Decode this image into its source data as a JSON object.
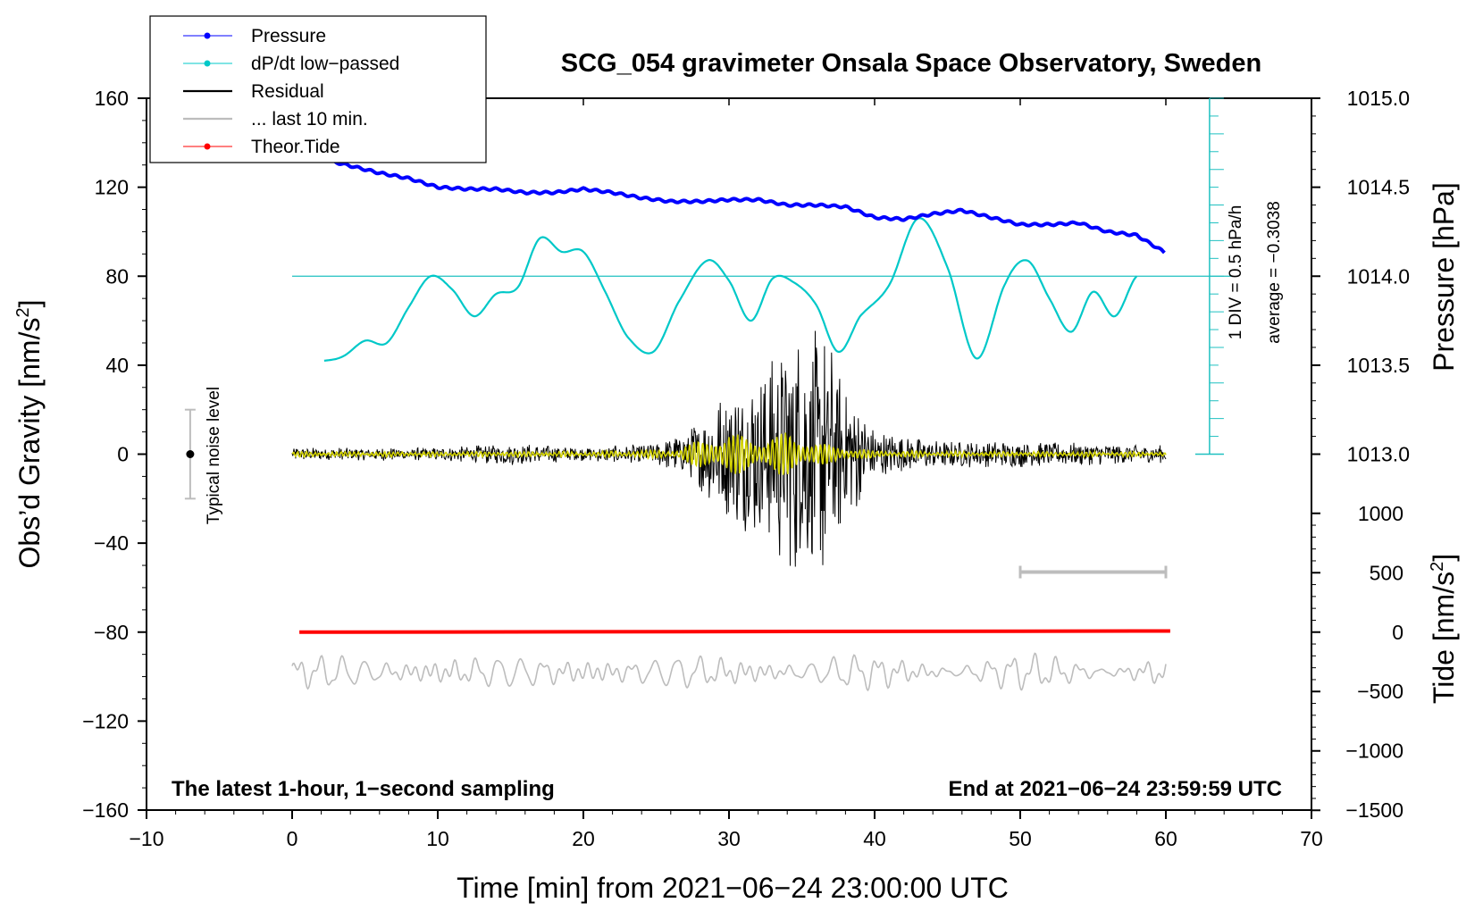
{
  "chart_data": {
    "type": "line",
    "title": "SCG_054 gravimeter Onsala Space Observatory, Sweden",
    "xlabel": "Time [min] from 2021−06−24 23:00:00 UTC",
    "ylabel_left_main": "Obs’d Gravity [nm/s",
    "ylabel_left_sup": "2",
    "ylabel_left_end": "]",
    "ylabel_right_pressure": "Pressure [hPa]",
    "ylabel_right_tide_main": "Tide [nm/s",
    "ylabel_right_tide_sup": "2",
    "ylabel_right_tide_end": "]",
    "xlim": [
      -10,
      70
    ],
    "ylim": [
      -160,
      160
    ],
    "x_ticks": [
      -10,
      0,
      10,
      20,
      30,
      40,
      50,
      60,
      70
    ],
    "x_tick_labels": [
      "−10",
      "0",
      "10",
      "20",
      "30",
      "40",
      "50",
      "60",
      "70"
    ],
    "y_ticks": [
      -160,
      -120,
      -80,
      -40,
      0,
      40,
      80,
      120,
      160
    ],
    "y_tick_labels": [
      "−160",
      "−120",
      "−80",
      "−40",
      "0",
      "40",
      "80",
      "120",
      "160"
    ],
    "pressure_ticks": [
      1013.0,
      1013.5,
      1014.0,
      1014.5,
      1015.0
    ],
    "pressure_tick_labels": [
      "1013.0",
      "1013.5",
      "1014.0",
      "1014.5",
      "1015.0"
    ],
    "pressure_axis_ref": {
      "p1": 1014.0,
      "g1": 80,
      "g_per_hpa": 80
    },
    "tide_ticks": [
      -1500,
      -1000,
      -500,
      0,
      500,
      1000
    ],
    "tide_tick_labels": [
      "−1500",
      "−1000",
      "−500",
      "0",
      "500",
      "1000"
    ],
    "tide_axis_ref": {
      "t0": 0,
      "g0": -80,
      "g_per_unit": 0.0534
    },
    "legend": [
      {
        "label": "Pressure",
        "color": "#0000ff",
        "marker": true
      },
      {
        "label": "dP/dt low−passed",
        "color": "#00c8c8",
        "marker": true
      },
      {
        "label": "Residual",
        "color": "#000000",
        "marker": false
      },
      {
        "label": "... last 10 min.",
        "color": "#bdbdbd",
        "marker": false
      },
      {
        "label": "Theor.Tide",
        "color": "#ff0000",
        "marker": true
      }
    ],
    "legend_location": "top-left",
    "note_left": "The latest 1-hour, 1−second sampling",
    "note_right": "End at 2021−06−24 23:59:59 UTC",
    "noise_label": "Typical noise level",
    "noise_level": {
      "x": -7,
      "center": 0,
      "halfwidth": 20
    },
    "dpdt_scale_label": "1 DIV = 0.5 hPa/h",
    "dpdt_average_label": "average = −0.3038",
    "dpdt_ref_line_y": 80,
    "dpdt_scale_bar": {
      "x": 63,
      "y_from": 0,
      "y_to": 160,
      "div_count": 10
    },
    "period_bar": {
      "x_from": 50,
      "x_to": 60,
      "y": -53
    },
    "series": [
      {
        "name": "Pressure",
        "color": "#0000ff",
        "x": [
          0,
          2,
          4,
          6,
          8,
          10,
          12,
          14,
          16,
          18,
          20,
          22,
          24,
          26,
          28,
          30,
          32,
          34,
          36,
          38,
          40,
          42,
          44,
          46,
          48,
          50,
          52,
          54,
          56,
          58,
          60
        ],
        "y": [
          1014.7,
          1014.66,
          1014.62,
          1014.58,
          1014.55,
          1014.5,
          1014.49,
          1014.49,
          1014.47,
          1014.47,
          1014.49,
          1014.47,
          1014.44,
          1014.42,
          1014.42,
          1014.43,
          1014.43,
          1014.4,
          1014.4,
          1014.39,
          1014.33,
          1014.32,
          1014.35,
          1014.37,
          1014.33,
          1014.29,
          1014.29,
          1014.3,
          1014.25,
          1014.23,
          1014.13
        ]
      },
      {
        "name": "dP/dt low−passed",
        "color": "#00c8c8",
        "x": [
          2.2,
          3.5,
          5,
          6.5,
          8,
          9.5,
          11,
          12.5,
          14,
          15.5,
          17,
          18.5,
          20,
          21.5,
          23,
          24.8,
          26.5,
          28.5,
          30,
          31.5,
          33,
          34.5,
          36,
          37.5,
          39,
          41,
          43,
          45,
          47,
          49,
          50.5,
          52,
          53.5,
          55,
          56.5,
          58
        ],
        "y": [
          42,
          44,
          51,
          50,
          66,
          80,
          74,
          62,
          72,
          75,
          97,
          91,
          91,
          73,
          53,
          46,
          68,
          87,
          78,
          60,
          79,
          77,
          67,
          46,
          62,
          76,
          106,
          84,
          43,
          77,
          87,
          70,
          55,
          73,
          62,
          80
        ]
      },
      {
        "name": "Residual",
        "color": "#000000",
        "envelope_x": [
          0,
          5,
          10,
          15,
          20,
          25,
          27,
          29,
          31,
          33,
          34.5,
          35.5,
          36.5,
          37.5,
          38.5,
          40,
          42,
          45,
          50,
          55,
          60
        ],
        "envelope_y": [
          3,
          3,
          3,
          5,
          3,
          5,
          10,
          25,
          35,
          45,
          60,
          55,
          60,
          40,
          30,
          12,
          8,
          6,
          6,
          5,
          4
        ]
      },
      {
        "name": "filtered",
        "color": "#d4d400",
        "envelope_x": [
          0,
          10,
          20,
          26,
          28,
          30,
          32,
          34,
          36,
          38,
          40,
          45,
          50,
          60
        ],
        "envelope_y": [
          1,
          1,
          1,
          2,
          6,
          10,
          7,
          10,
          5,
          3,
          1.5,
          1,
          1,
          1
        ]
      },
      {
        "name": "... last 10 min.",
        "color": "#bdbdbd",
        "offset": -98,
        "amplitude": 6
      },
      {
        "name": "Theor.Tide",
        "color": "#ff0000",
        "x": [
          0.5,
          60.3
        ],
        "y": [
          -80,
          -79.5
        ]
      }
    ]
  }
}
